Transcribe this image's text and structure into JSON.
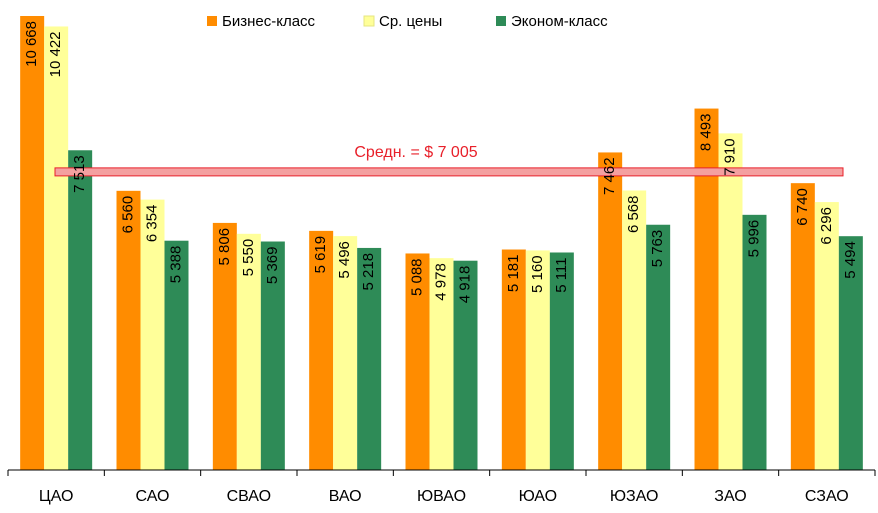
{
  "chart_data": {
    "type": "bar",
    "categories": [
      "ЦАО",
      "САО",
      "СВАО",
      "ВАО",
      "ЮВАО",
      "ЮАО",
      "ЮЗАО",
      "ЗАО",
      "СЗАО"
    ],
    "series": [
      {
        "name": "Бизнес-класс",
        "color": "#ff8c00",
        "values": [
          10668,
          6560,
          5806,
          5619,
          5088,
          5181,
          7462,
          8493,
          6740
        ],
        "value_labels": [
          "10 668",
          "6 560",
          "5 806",
          "5 619",
          "5 088",
          "5 181",
          "7 462",
          "8 493",
          "6 740"
        ]
      },
      {
        "name": "Ср. цены",
        "color": "#ffff99",
        "values": [
          10422,
          6354,
          5550,
          5496,
          4978,
          5160,
          6568,
          7910,
          6296
        ],
        "value_labels": [
          "10 422",
          "6 354",
          "5 550",
          "5 496",
          "4 978",
          "5 160",
          "6 568",
          "7 910",
          "6 296"
        ]
      },
      {
        "name": "Эконом-класс",
        "color": "#2e8b57",
        "values": [
          7513,
          5388,
          5369,
          5218,
          4918,
          5111,
          5763,
          5996,
          5494
        ],
        "value_labels": [
          "7 513",
          "5 388",
          "5 369",
          "5 218",
          "4 918",
          "5 111",
          "5 763",
          "5 996",
          "5 494"
        ]
      }
    ],
    "average": {
      "value": 7005,
      "label": "Средн. = $ 7 005",
      "color": "#e8202a"
    },
    "legend": "top"
  }
}
